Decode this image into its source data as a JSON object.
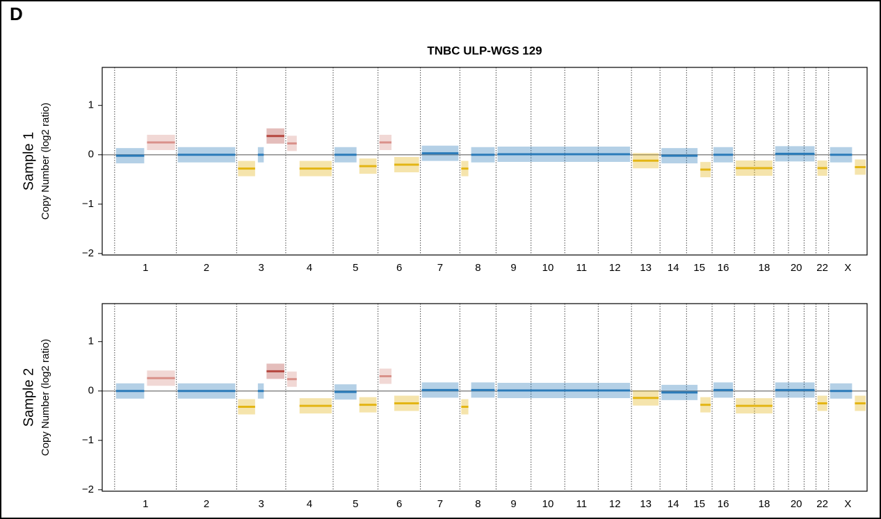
{
  "figure": {
    "panel_label": "D",
    "title": "TNBC ULP-WGS 129"
  },
  "chart_data": [
    {
      "type": "segments",
      "ylabel": "Sample 1",
      "ylabel_sub": "Copy Number (log2 ratio)",
      "xlim": [
        -50,
        3034
      ],
      "ylim": [
        -2.03,
        1.77
      ],
      "yticks": [
        {
          "value": -2,
          "label": "−2"
        },
        {
          "value": -1,
          "label": "−1"
        },
        0,
        1
      ],
      "xticks": [
        {
          "value": 124.5,
          "label": "1"
        },
        {
          "value": 370.5,
          "label": "2"
        },
        {
          "value": 591,
          "label": "3"
        },
        {
          "value": 785.5,
          "label": "4"
        },
        {
          "value": 971.5,
          "label": "5"
        },
        {
          "value": 1147.5,
          "label": "6"
        },
        {
          "value": 1312.5,
          "label": "7"
        },
        {
          "value": 1465,
          "label": "8"
        },
        {
          "value": 1608.5,
          "label": "9"
        },
        {
          "value": 1747,
          "label": "10"
        },
        {
          "value": 1882.5,
          "label": "11"
        },
        {
          "value": 2017,
          "label": "12"
        },
        {
          "value": 2141.5,
          "label": "13"
        },
        {
          "value": 2252.5,
          "label": "14"
        },
        {
          "value": 2357.5,
          "label": "15"
        },
        {
          "value": 2454,
          "label": "16"
        },
        {
          "value": 2619,
          "label": "18"
        },
        {
          "value": 2748.5,
          "label": "20"
        },
        {
          "value": 2853.5,
          "label": "22"
        },
        {
          "value": 2956.5,
          "label": "X"
        }
      ],
      "vlines": [
        0,
        249,
        492,
        690,
        881,
        1062,
        1233,
        1392,
        1538,
        1679,
        1815,
        1950,
        2084,
        2199,
        2306,
        2409,
        2499,
        2580,
        2658,
        2717,
        2780,
        2828,
        2879
      ],
      "segments": [
        {
          "start": 0,
          "end": 125,
          "value": -0.02,
          "color": "#2b7bb9"
        },
        {
          "start": 125,
          "end": 249,
          "value": 0.25,
          "color": "#d9918a"
        },
        {
          "start": 249,
          "end": 492,
          "value": 0.0,
          "color": "#2b7bb9"
        },
        {
          "start": 492,
          "end": 572,
          "value": -0.28,
          "color": "#e3b514"
        },
        {
          "start": 572,
          "end": 607,
          "value": 0.0,
          "color": "#2b7bb9"
        },
        {
          "start": 607,
          "end": 690,
          "value": 0.38,
          "color": "#b5463e"
        },
        {
          "start": 690,
          "end": 740,
          "value": 0.23,
          "color": "#d9918a"
        },
        {
          "start": 740,
          "end": 881,
          "value": -0.28,
          "color": "#e3b514"
        },
        {
          "start": 881,
          "end": 981,
          "value": 0.0,
          "color": "#2b7bb9"
        },
        {
          "start": 981,
          "end": 1062,
          "value": -0.23,
          "color": "#e3b514"
        },
        {
          "start": 1062,
          "end": 1122,
          "value": 0.25,
          "color": "#d9918a"
        },
        {
          "start": 1122,
          "end": 1233,
          "value": -0.2,
          "color": "#e3b514"
        },
        {
          "start": 1233,
          "end": 1392,
          "value": 0.03,
          "color": "#2b7bb9"
        },
        {
          "start": 1392,
          "end": 1432,
          "value": -0.28,
          "color": "#e3b514"
        },
        {
          "start": 1432,
          "end": 1538,
          "value": 0.0,
          "color": "#2b7bb9"
        },
        {
          "start": 1538,
          "end": 2084,
          "value": 0.01,
          "color": "#2b7bb9"
        },
        {
          "start": 2084,
          "end": 2199,
          "value": -0.12,
          "color": "#e3b514"
        },
        {
          "start": 2199,
          "end": 2356,
          "value": -0.02,
          "color": "#2b7bb9"
        },
        {
          "start": 2356,
          "end": 2409,
          "value": -0.3,
          "color": "#e3b514"
        },
        {
          "start": 2409,
          "end": 2499,
          "value": 0.0,
          "color": "#2b7bb9"
        },
        {
          "start": 2499,
          "end": 2658,
          "value": -0.27,
          "color": "#e3b514"
        },
        {
          "start": 2658,
          "end": 2828,
          "value": 0.02,
          "color": "#2b7bb9"
        },
        {
          "start": 2828,
          "end": 2879,
          "value": -0.27,
          "color": "#e3b514"
        },
        {
          "start": 2879,
          "end": 2979,
          "value": 0.0,
          "color": "#2b7bb9"
        },
        {
          "start": 2979,
          "end": 3034,
          "value": -0.25,
          "color": "#e3b514"
        }
      ]
    },
    {
      "type": "segments",
      "ylabel": "Sample 2",
      "ylabel_sub": "Copy Number (log2 ratio)",
      "xlim": [
        -50,
        3034
      ],
      "ylim": [
        -2.03,
        1.77
      ],
      "yticks": [
        {
          "value": -2,
          "label": "−2"
        },
        {
          "value": -1,
          "label": "−1"
        },
        0,
        1
      ],
      "xticks": [
        {
          "value": 124.5,
          "label": "1"
        },
        {
          "value": 370.5,
          "label": "2"
        },
        {
          "value": 591,
          "label": "3"
        },
        {
          "value": 785.5,
          "label": "4"
        },
        {
          "value": 971.5,
          "label": "5"
        },
        {
          "value": 1147.5,
          "label": "6"
        },
        {
          "value": 1312.5,
          "label": "7"
        },
        {
          "value": 1465,
          "label": "8"
        },
        {
          "value": 1608.5,
          "label": "9"
        },
        {
          "value": 1747,
          "label": "10"
        },
        {
          "value": 1882.5,
          "label": "11"
        },
        {
          "value": 2017,
          "label": "12"
        },
        {
          "value": 2141.5,
          "label": "13"
        },
        {
          "value": 2252.5,
          "label": "14"
        },
        {
          "value": 2357.5,
          "label": "15"
        },
        {
          "value": 2454,
          "label": "16"
        },
        {
          "value": 2619,
          "label": "18"
        },
        {
          "value": 2748.5,
          "label": "20"
        },
        {
          "value": 2853.5,
          "label": "22"
        },
        {
          "value": 2956.5,
          "label": "X"
        }
      ],
      "vlines": [
        0,
        249,
        492,
        690,
        881,
        1062,
        1233,
        1392,
        1538,
        1679,
        1815,
        1950,
        2084,
        2199,
        2306,
        2409,
        2499,
        2580,
        2658,
        2717,
        2780,
        2828,
        2879
      ],
      "segments": [
        {
          "start": 0,
          "end": 125,
          "value": 0.0,
          "color": "#2b7bb9"
        },
        {
          "start": 125,
          "end": 249,
          "value": 0.26,
          "color": "#d9918a"
        },
        {
          "start": 249,
          "end": 492,
          "value": 0.0,
          "color": "#2b7bb9"
        },
        {
          "start": 492,
          "end": 572,
          "value": -0.32,
          "color": "#e3b514"
        },
        {
          "start": 572,
          "end": 607,
          "value": 0.0,
          "color": "#2b7bb9"
        },
        {
          "start": 607,
          "end": 690,
          "value": 0.4,
          "color": "#b5463e"
        },
        {
          "start": 690,
          "end": 740,
          "value": 0.24,
          "color": "#d9918a"
        },
        {
          "start": 740,
          "end": 881,
          "value": -0.3,
          "color": "#e3b514"
        },
        {
          "start": 881,
          "end": 981,
          "value": -0.02,
          "color": "#2b7bb9"
        },
        {
          "start": 981,
          "end": 1062,
          "value": -0.28,
          "color": "#e3b514"
        },
        {
          "start": 1062,
          "end": 1122,
          "value": 0.3,
          "color": "#d9918a"
        },
        {
          "start": 1122,
          "end": 1233,
          "value": -0.25,
          "color": "#e3b514"
        },
        {
          "start": 1233,
          "end": 1392,
          "value": 0.02,
          "color": "#2b7bb9"
        },
        {
          "start": 1392,
          "end": 1432,
          "value": -0.32,
          "color": "#e3b514"
        },
        {
          "start": 1432,
          "end": 1538,
          "value": 0.02,
          "color": "#2b7bb9"
        },
        {
          "start": 1538,
          "end": 2084,
          "value": 0.01,
          "color": "#2b7bb9"
        },
        {
          "start": 2084,
          "end": 2199,
          "value": -0.14,
          "color": "#e3b514"
        },
        {
          "start": 2199,
          "end": 2356,
          "value": -0.03,
          "color": "#2b7bb9"
        },
        {
          "start": 2356,
          "end": 2409,
          "value": -0.28,
          "color": "#e3b514"
        },
        {
          "start": 2409,
          "end": 2499,
          "value": 0.02,
          "color": "#2b7bb9"
        },
        {
          "start": 2499,
          "end": 2658,
          "value": -0.3,
          "color": "#e3b514"
        },
        {
          "start": 2658,
          "end": 2828,
          "value": 0.02,
          "color": "#2b7bb9"
        },
        {
          "start": 2828,
          "end": 2879,
          "value": -0.25,
          "color": "#e3b514"
        },
        {
          "start": 2879,
          "end": 2979,
          "value": 0.0,
          "color": "#2b7bb9"
        },
        {
          "start": 2979,
          "end": 3034,
          "value": -0.25,
          "color": "#e3b514"
        }
      ]
    }
  ]
}
